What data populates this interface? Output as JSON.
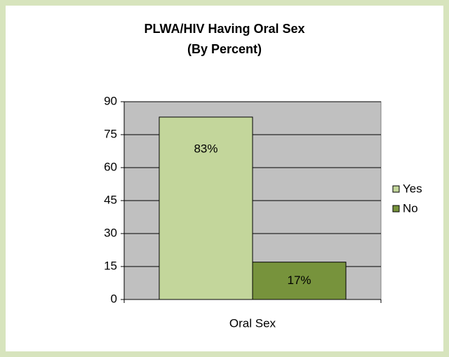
{
  "chart_data": {
    "type": "bar",
    "title": "PLWA/HIV Having Oral Sex",
    "subtitle": "(By Percent)",
    "categories": [
      "Oral Sex"
    ],
    "series": [
      {
        "name": "Yes",
        "color": "#c3d69b",
        "values": [
          83
        ],
        "value_labels": [
          "83%"
        ]
      },
      {
        "name": "No",
        "color": "#77933c",
        "values": [
          17
        ],
        "value_labels": [
          "17%"
        ]
      }
    ],
    "ylim": [
      0,
      90
    ],
    "yticks": [
      0,
      15,
      30,
      45,
      60,
      75,
      90
    ],
    "grid": true,
    "plot_background": "#c0c0c0",
    "legend": "right"
  }
}
